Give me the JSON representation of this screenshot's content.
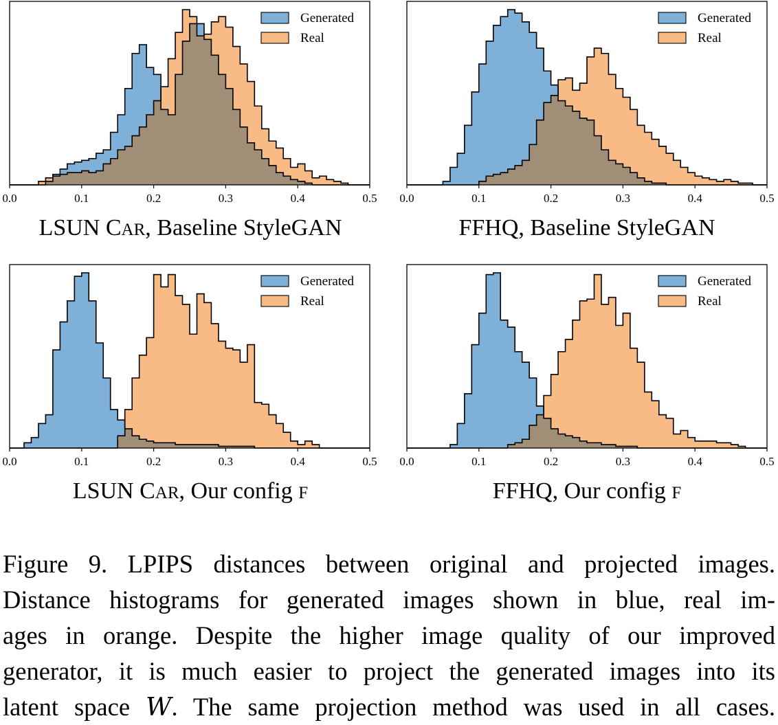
{
  "colors": {
    "generated": "#7fb0d8",
    "real": "#f9bb86",
    "overlap": "#a08e76",
    "edge": "#000000"
  },
  "chart_data": [
    {
      "type": "histogram",
      "title_parts": [
        "LSUN C",
        "AR",
        ", Baseline StyleGAN"
      ],
      "xlim": [
        0.0,
        0.5
      ],
      "xticks": [
        "0.0",
        "0.1",
        "0.2",
        "0.3",
        "0.4",
        "0.5"
      ],
      "yticks": "none",
      "legend": "top-right",
      "bin_start": 0.0,
      "bin_width": 0.01,
      "series": [
        {
          "name": "Generated",
          "color": "#7fb0d8",
          "values": [
            0,
            0,
            0,
            0,
            0,
            0.02,
            0.06,
            0.09,
            0.12,
            0.13,
            0.14,
            0.15,
            0.18,
            0.2,
            0.3,
            0.4,
            0.55,
            0.75,
            0.8,
            0.67,
            0.63,
            0.43,
            0.4,
            0.63,
            0.82,
            0.92,
            0.92,
            0.83,
            0.74,
            0.63,
            0.55,
            0.43,
            0.33,
            0.24,
            0.2,
            0.15,
            0.11,
            0.07,
            0.05,
            0.03,
            0.02,
            0.01,
            0,
            0,
            0,
            0,
            0,
            0,
            0,
            0
          ]
        },
        {
          "name": "Real",
          "color": "#f9bb86",
          "values": [
            0,
            0,
            0,
            0,
            0.02,
            0.04,
            0.05,
            0.06,
            0.07,
            0.07,
            0.08,
            0.07,
            0.08,
            0.12,
            0.15,
            0.2,
            0.22,
            0.28,
            0.33,
            0.4,
            0.48,
            0.56,
            0.72,
            0.87,
            1.0,
            0.96,
            0.85,
            0.86,
            0.93,
            0.96,
            0.9,
            0.79,
            0.69,
            0.59,
            0.45,
            0.32,
            0.25,
            0.21,
            0.15,
            0.1,
            0.12,
            0.08,
            0.04,
            0.05,
            0.03,
            0.02,
            0.01,
            0,
            0,
            0
          ]
        }
      ]
    },
    {
      "type": "histogram",
      "title_parts": [
        "FFHQ, Baseline StyleGAN"
      ],
      "xlim": [
        0.0,
        0.5
      ],
      "xticks": [
        "0.0",
        "0.1",
        "0.2",
        "0.3",
        "0.4",
        "0.5"
      ],
      "yticks": "none",
      "legend": "top-right",
      "bin_start": 0.0,
      "bin_width": 0.01,
      "series": [
        {
          "name": "Generated",
          "color": "#7fb0d8",
          "values": [
            0,
            0,
            0,
            0,
            0,
            0.02,
            0.1,
            0.18,
            0.34,
            0.53,
            0.69,
            0.82,
            0.91,
            0.96,
            1.0,
            0.98,
            0.93,
            0.87,
            0.78,
            0.65,
            0.57,
            0.48,
            0.45,
            0.42,
            0.38,
            0.37,
            0.28,
            0.2,
            0.14,
            0.12,
            0.1,
            0.07,
            0.04,
            0.02,
            0.01,
            0.01,
            0,
            0,
            0,
            0,
            0,
            0,
            0,
            0,
            0,
            0,
            0,
            0,
            0,
            0
          ]
        },
        {
          "name": "Real",
          "color": "#f9bb86",
          "values": [
            0,
            0,
            0,
            0,
            0,
            0,
            0,
            0,
            0,
            0,
            0.02,
            0.05,
            0.06,
            0.07,
            0.09,
            0.11,
            0.14,
            0.23,
            0.37,
            0.47,
            0.51,
            0.6,
            0.61,
            0.54,
            0.58,
            0.73,
            0.78,
            0.75,
            0.63,
            0.55,
            0.5,
            0.43,
            0.34,
            0.3,
            0.26,
            0.22,
            0.18,
            0.14,
            0.1,
            0.07,
            0.05,
            0.04,
            0.03,
            0.02,
            0.03,
            0.02,
            0.01,
            0.01,
            0,
            0
          ]
        }
      ]
    },
    {
      "type": "histogram",
      "title_parts": [
        "LSUN C",
        "AR",
        ", Our config ",
        "F"
      ],
      "xlim": [
        0.0,
        0.5
      ],
      "xticks": [
        "0.0",
        "0.1",
        "0.2",
        "0.3",
        "0.4",
        "0.5"
      ],
      "yticks": "none",
      "legend": "top-right",
      "bin_start": 0.0,
      "bin_width": 0.01,
      "series": [
        {
          "name": "Generated",
          "color": "#7fb0d8",
          "values": [
            0,
            0,
            0.03,
            0.06,
            0.14,
            0.19,
            0.56,
            0.72,
            0.84,
            0.98,
            1.0,
            0.84,
            0.6,
            0.4,
            0.22,
            0.16,
            0.11,
            0.07,
            0.05,
            0.04,
            0.03,
            0.03,
            0.03,
            0.02,
            0.02,
            0.02,
            0.02,
            0.02,
            0.02,
            0.01,
            0.01,
            0.01,
            0.01,
            0.01,
            0,
            0,
            0,
            0,
            0,
            0,
            0,
            0,
            0,
            0,
            0,
            0,
            0,
            0,
            0,
            0
          ]
        },
        {
          "name": "Real",
          "color": "#f9bb86",
          "values": [
            0,
            0,
            0,
            0,
            0,
            0,
            0,
            0,
            0,
            0,
            0,
            0,
            0,
            0,
            0,
            0.07,
            0.22,
            0.4,
            0.53,
            0.63,
            0.99,
            0.92,
            0.99,
            0.87,
            0.82,
            0.65,
            0.88,
            0.83,
            0.71,
            0.61,
            0.57,
            0.56,
            0.49,
            0.59,
            0.26,
            0.25,
            0.19,
            0.14,
            0.09,
            0.04,
            0.02,
            0.04,
            0.02,
            0,
            0,
            0,
            0,
            0,
            0,
            0
          ]
        }
      ]
    },
    {
      "type": "histogram",
      "title_parts": [
        "FFHQ, Our config ",
        "F"
      ],
      "xlim": [
        0.0,
        0.5
      ],
      "xticks": [
        "0.0",
        "0.1",
        "0.2",
        "0.3",
        "0.4",
        "0.5"
      ],
      "yticks": "none",
      "legend": "top-right",
      "bin_start": 0.0,
      "bin_width": 0.01,
      "series": [
        {
          "name": "Generated",
          "color": "#7fb0d8",
          "values": [
            0,
            0,
            0,
            0,
            0,
            0,
            0.02,
            0.14,
            0.31,
            0.59,
            0.77,
            0.99,
            1.0,
            0.73,
            0.69,
            0.55,
            0.49,
            0.4,
            0.24,
            0.17,
            0.11,
            0.08,
            0.07,
            0.06,
            0.04,
            0.03,
            0.03,
            0.02,
            0.02,
            0.01,
            0.01,
            0.01,
            0,
            0,
            0,
            0,
            0,
            0,
            0,
            0,
            0,
            0,
            0,
            0,
            0,
            0,
            0,
            0,
            0,
            0
          ]
        },
        {
          "name": "Real",
          "color": "#f9bb86",
          "values": [
            0,
            0,
            0,
            0,
            0,
            0,
            0,
            0,
            0,
            0,
            0,
            0,
            0,
            0,
            0.02,
            0.03,
            0.05,
            0.13,
            0.19,
            0.3,
            0.42,
            0.55,
            0.62,
            0.73,
            0.84,
            0.85,
            0.99,
            0.82,
            0.86,
            0.7,
            0.77,
            0.57,
            0.49,
            0.32,
            0.27,
            0.19,
            0.17,
            0.08,
            0.1,
            0.06,
            0.04,
            0.04,
            0.04,
            0.03,
            0.03,
            0.02,
            0.01,
            0,
            0,
            0
          ]
        }
      ]
    }
  ],
  "caption": {
    "lines": [
      [
        "Figure 9. LPIPS distances between original and projected images."
      ],
      [
        "Distance histograms for generated images shown in blue, real im-"
      ],
      [
        "ages in orange. Despite the higher image quality of our improved"
      ],
      [
        "generator, it is much easier to project the generated images into its"
      ],
      [
        "latent space ",
        "W",
        ". The same projection method was used in all cases."
      ]
    ]
  }
}
